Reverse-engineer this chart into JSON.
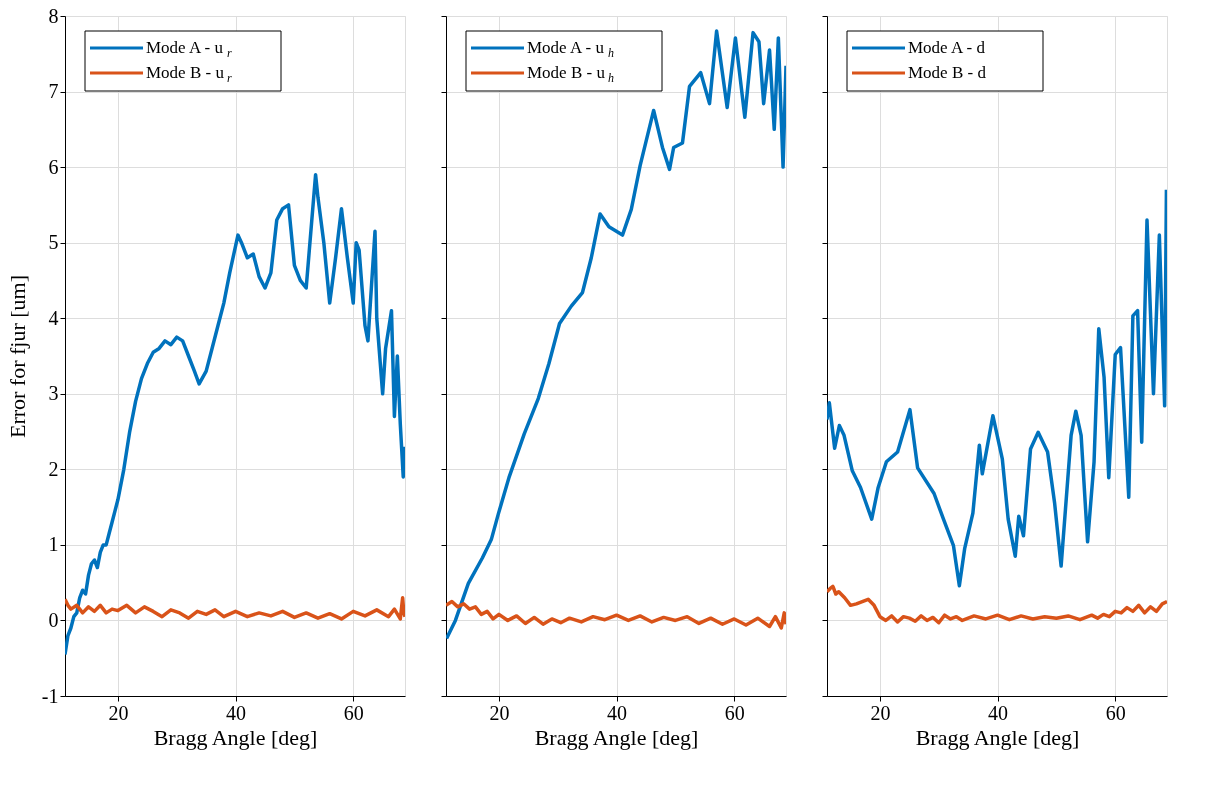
{
  "chart_data": [
    {
      "type": "line",
      "xlabel": "Bragg Angle [deg]",
      "ylabel": "Error for fjur [um]",
      "xlim": [
        11,
        68.8
      ],
      "ylim": [
        -1,
        8
      ],
      "xticks": [
        20,
        40,
        60
      ],
      "yticks": [
        -1,
        0,
        1,
        2,
        3,
        4,
        5,
        6,
        7,
        8
      ],
      "grid": true,
      "legend": "top left",
      "series": [
        {
          "name": "Mode A - u$_{r}$",
          "color": "#0072bd",
          "x": [
            11,
            11.5,
            12,
            12.5,
            13,
            13.5,
            14,
            14.5,
            15,
            15.5,
            16,
            16.5,
            17,
            17.5,
            18,
            18.5,
            19,
            19.5,
            20,
            21,
            22,
            23,
            24,
            25,
            26,
            27,
            28,
            29,
            30,
            31,
            32,
            33,
            33.8,
            35,
            36,
            37,
            38,
            39,
            40.4,
            41,
            42,
            43,
            44,
            45,
            46,
            47,
            48,
            49,
            50,
            51,
            52,
            53.6,
            54,
            55,
            56,
            57,
            58,
            59,
            60,
            60.5,
            61,
            62,
            62.5,
            63.7,
            64,
            65,
            65.5,
            66.5,
            67,
            67.5,
            68,
            68.5,
            68.8
          ],
          "values": [
            -0.45,
            -0.2,
            -0.1,
            0.05,
            0.1,
            0.3,
            0.4,
            0.35,
            0.6,
            0.75,
            0.8,
            0.7,
            0.9,
            1.0,
            1.0,
            1.15,
            1.3,
            1.45,
            1.6,
            2.0,
            2.5,
            2.9,
            3.2,
            3.4,
            3.55,
            3.6,
            3.7,
            3.65,
            3.75,
            3.7,
            3.5,
            3.3,
            3.13,
            3.3,
            3.6,
            3.9,
            4.2,
            4.6,
            5.1,
            5.0,
            4.8,
            4.85,
            4.55,
            4.4,
            4.6,
            5.3,
            5.45,
            5.5,
            4.7,
            4.5,
            4.4,
            5.9,
            5.6,
            5.0,
            4.2,
            4.8,
            5.45,
            4.8,
            4.2,
            5.0,
            4.9,
            3.9,
            3.7,
            5.15,
            4.0,
            3.0,
            3.6,
            4.1,
            2.7,
            3.5,
            2.6,
            1.9,
            2.3
          ]
        },
        {
          "name": "Mode B - u$_{r}$",
          "color": "#d95319",
          "x": [
            11,
            11.5,
            12,
            13,
            14,
            15,
            16,
            17,
            18,
            19,
            20,
            21.5,
            23,
            24.5,
            26,
            27.5,
            29,
            30.5,
            32,
            33.5,
            35,
            36.5,
            38,
            40,
            42,
            44,
            46,
            48,
            50,
            52,
            54,
            56,
            58,
            60,
            62,
            64,
            66,
            67,
            68,
            68.4,
            68.6,
            68.8
          ],
          "values": [
            0.28,
            0.2,
            0.15,
            0.2,
            0.1,
            0.18,
            0.12,
            0.2,
            0.1,
            0.15,
            0.13,
            0.2,
            0.1,
            0.18,
            0.12,
            0.05,
            0.14,
            0.1,
            0.03,
            0.12,
            0.08,
            0.14,
            0.05,
            0.12,
            0.05,
            0.1,
            0.06,
            0.12,
            0.04,
            0.1,
            0.03,
            0.09,
            0.02,
            0.12,
            0.06,
            0.14,
            0.05,
            0.15,
            0.02,
            0.3,
            0.1,
            0.05
          ]
        }
      ]
    },
    {
      "type": "line",
      "xlabel": "Bragg Angle [deg]",
      "xlim": [
        11,
        68.8
      ],
      "ylim": [
        -1,
        8
      ],
      "xticks": [
        20,
        40,
        60
      ],
      "yticks": [
        -1,
        0,
        1,
        2,
        3,
        4,
        5,
        6,
        7,
        8
      ],
      "grid": true,
      "legend": "top left",
      "tick_labels": "x",
      "series": [
        {
          "name": "Mode A - u$_{h}$",
          "color": "#0072bd",
          "x": [
            11.1,
            12.6,
            14.8,
            17.2,
            18.7,
            19.9,
            21.7,
            24.3,
            26.7,
            28.5,
            30.3,
            32.3,
            34.2,
            35.7,
            37.2,
            38.7,
            41.0,
            42.5,
            44.0,
            46.3,
            47.8,
            49.0,
            49.7,
            51.2,
            52.4,
            54.3,
            55.8,
            57.0,
            58.8,
            60.2,
            61.8,
            63.2,
            64.2,
            65.0,
            66.0,
            66.8,
            67.5,
            68.3,
            68.8
          ],
          "values": [
            -0.24,
            0.0,
            0.49,
            0.83,
            1.07,
            1.41,
            1.89,
            2.47,
            2.94,
            3.4,
            3.93,
            4.16,
            4.34,
            4.8,
            5.38,
            5.21,
            5.1,
            5.44,
            6.02,
            6.75,
            6.26,
            5.97,
            6.26,
            6.32,
            7.07,
            7.25,
            6.84,
            7.8,
            6.79,
            7.71,
            6.66,
            7.78,
            7.66,
            6.84,
            7.55,
            6.5,
            7.71,
            6.0,
            7.34
          ]
        },
        {
          "name": "Mode B - u$_{h}$",
          "color": "#d95319",
          "x": [
            11,
            12,
            13,
            14,
            15,
            16,
            17,
            18,
            19,
            20,
            21.5,
            23,
            24.5,
            26,
            27.5,
            29,
            30.5,
            32,
            34,
            36,
            38,
            40,
            42,
            44,
            46,
            48,
            50,
            52,
            54,
            56,
            58,
            60,
            62,
            64,
            66,
            67,
            68,
            68.5,
            68.8
          ],
          "values": [
            0.2,
            0.25,
            0.18,
            0.22,
            0.15,
            0.18,
            0.08,
            0.12,
            0.02,
            0.08,
            0.0,
            0.06,
            -0.04,
            0.04,
            -0.05,
            0.02,
            -0.03,
            0.03,
            -0.02,
            0.05,
            0.01,
            0.07,
            0.0,
            0.06,
            -0.02,
            0.04,
            0.0,
            0.05,
            -0.04,
            0.03,
            -0.05,
            0.02,
            -0.06,
            0.03,
            -0.08,
            0.05,
            -0.1,
            0.1,
            -0.05
          ]
        }
      ]
    },
    {
      "type": "line",
      "xlabel": "Bragg Angle [deg]",
      "xlim": [
        11,
        68.8
      ],
      "ylim": [
        -1,
        8
      ],
      "xticks": [
        20,
        40,
        60
      ],
      "yticks": [
        -1,
        0,
        1,
        2,
        3,
        4,
        5,
        6,
        7,
        8
      ],
      "grid": true,
      "legend": "top left",
      "tick_labels": "x",
      "series": [
        {
          "name": "Mode A - d",
          "color": "#0072bd",
          "x": [
            11.0,
            11.4,
            12.3,
            13.1,
            13.9,
            15.3,
            16.7,
            18.6,
            19.7,
            21.1,
            23.0,
            25.1,
            26.4,
            29.2,
            30.8,
            32.5,
            33.5,
            34.4,
            35.8,
            36.9,
            37.4,
            39.2,
            40.8,
            41.8,
            43.0,
            43.6,
            44.4,
            45.6,
            46.9,
            48.5,
            49.7,
            50.8,
            52.5,
            53.3,
            54.2,
            55.3,
            56.4,
            57.2,
            58.1,
            58.9,
            60.0,
            60.9,
            62.3,
            63.0,
            63.8,
            64.5,
            65.4,
            66.5,
            67.5,
            68.4,
            68.7
          ],
          "values": [
            2.66,
            2.88,
            2.28,
            2.58,
            2.45,
            1.98,
            1.76,
            1.34,
            1.76,
            2.1,
            2.23,
            2.79,
            2.02,
            1.68,
            1.34,
            0.99,
            0.46,
            0.95,
            1.42,
            2.32,
            1.94,
            2.71,
            2.14,
            1.34,
            0.85,
            1.38,
            1.12,
            2.27,
            2.49,
            2.23,
            1.55,
            0.72,
            2.45,
            2.77,
            2.45,
            1.04,
            2.1,
            3.86,
            3.22,
            1.89,
            3.52,
            3.61,
            1.63,
            4.03,
            4.1,
            2.36,
            5.3,
            3.0,
            5.1,
            2.84,
            5.7
          ]
        },
        {
          "name": "Mode B - d",
          "color": "#d95319",
          "x": [
            11,
            11.5,
            12,
            12.5,
            13,
            14,
            15,
            16,
            17,
            18,
            19,
            20,
            21,
            22,
            23,
            24,
            25,
            26,
            27,
            28,
            29,
            30,
            31,
            32,
            33,
            34,
            36,
            38,
            40,
            42,
            44,
            46,
            48,
            50,
            52,
            54,
            56,
            57,
            58,
            59,
            60,
            61,
            62,
            63,
            64,
            65,
            66,
            67,
            68,
            68.8
          ],
          "values": [
            0.38,
            0.42,
            0.45,
            0.35,
            0.38,
            0.3,
            0.2,
            0.22,
            0.25,
            0.28,
            0.2,
            0.05,
            0.0,
            0.06,
            -0.02,
            0.05,
            0.03,
            -0.01,
            0.06,
            0.0,
            0.04,
            -0.03,
            0.07,
            0.02,
            0.05,
            0.0,
            0.06,
            0.02,
            0.07,
            0.01,
            0.06,
            0.02,
            0.05,
            0.03,
            0.06,
            0.01,
            0.07,
            0.03,
            0.08,
            0.05,
            0.12,
            0.1,
            0.17,
            0.12,
            0.2,
            0.1,
            0.18,
            0.12,
            0.22,
            0.25
          ]
        }
      ]
    }
  ]
}
